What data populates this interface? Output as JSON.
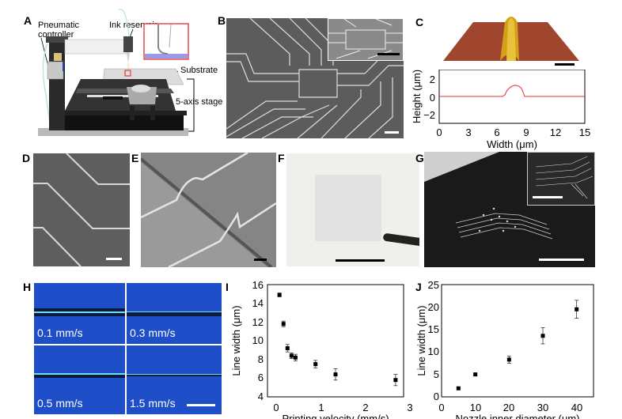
{
  "panels": {
    "A": {
      "label": "A",
      "annotations": {
        "pneumatic_controller": [
          "Pneumatic",
          "controller"
        ],
        "ink_reservoir": "Ink reservoir",
        "substrate": "Substrate",
        "stage": "5-axis stage"
      }
    },
    "B": {
      "label": "B"
    },
    "C": {
      "label": "C",
      "profile_color": "#e8302a",
      "surface_color": "#a0462e",
      "line_color": "#d4a017"
    },
    "D": {
      "label": "D"
    },
    "E": {
      "label": "E"
    },
    "F": {
      "label": "F"
    },
    "G": {
      "label": "G"
    },
    "H": {
      "label": "H",
      "speeds": [
        "0.1 mm/s",
        "0.3 mm/s",
        "0.5 mm/s",
        "1.5 mm/s"
      ],
      "background_color": "#1f4fc8"
    },
    "I": {
      "label": "I"
    },
    "J": {
      "label": "J"
    }
  },
  "chart_data": [
    {
      "panel": "C",
      "type": "line",
      "title": "",
      "xlabel": "Width (μm)",
      "ylabel": "Height (μm)",
      "xlim": [
        0,
        15
      ],
      "ylim": [
        -3,
        3
      ],
      "xticks": [
        "0",
        "3",
        "6",
        "9",
        "12",
        "15"
      ],
      "yticks": [
        "2",
        "0",
        "−2"
      ],
      "series": [
        {
          "name": "profile",
          "x": [
            0,
            6.5,
            6.7,
            7.0,
            7.5,
            8.0,
            8.4,
            8.7,
            8.8,
            15
          ],
          "y": [
            0,
            0,
            0.1,
            0.7,
            1.1,
            1.2,
            1.0,
            0.5,
            0,
            0
          ]
        }
      ],
      "grid": false
    },
    {
      "panel": "I",
      "type": "scatter",
      "title": "",
      "xlabel": "Printing velocity (mm/s)",
      "ylabel": "Line width (μm)",
      "xlim": [
        -0.2,
        3.2
      ],
      "ylim": [
        4,
        16
      ],
      "xticks": [
        "0",
        "1",
        "2",
        "3"
      ],
      "yticks": [
        "4",
        "6",
        "8",
        "10",
        "12",
        "14",
        "16"
      ],
      "x": [
        0.1,
        0.2,
        0.3,
        0.4,
        0.5,
        1.0,
        1.5,
        3.0
      ],
      "values": [
        14.9,
        11.8,
        9.2,
        8.4,
        8.2,
        7.5,
        6.4,
        5.8
      ],
      "error": [
        0.2,
        0.3,
        0.4,
        0.3,
        0.35,
        0.4,
        0.6,
        0.6
      ],
      "grid": false
    },
    {
      "panel": "J",
      "type": "scatter",
      "title": "",
      "xlabel": "Nozzle inner diameter (μm)",
      "ylabel": "Line width (μm)",
      "xlim": [
        0,
        45
      ],
      "ylim": [
        0,
        25
      ],
      "xticks": [
        "0",
        "10",
        "20",
        "30",
        "40"
      ],
      "yticks": [
        "0",
        "5",
        "10",
        "15",
        "20",
        "25"
      ],
      "x": [
        5,
        10,
        20,
        30,
        40
      ],
      "values": [
        1.9,
        5.0,
        8.3,
        13.6,
        19.5
      ],
      "error": [
        0.2,
        0.3,
        0.8,
        1.8,
        2.0
      ],
      "grid": false
    }
  ]
}
